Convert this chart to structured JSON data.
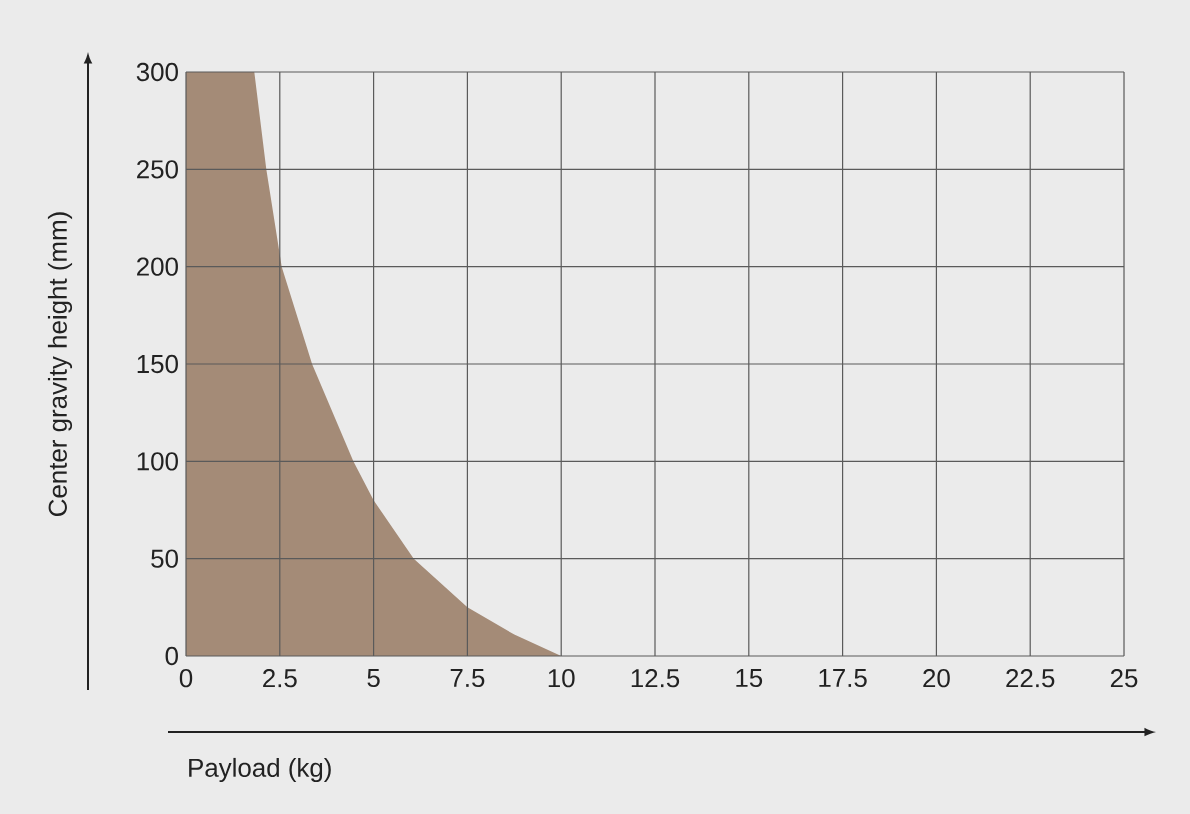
{
  "chart_data": {
    "type": "area",
    "xlabel": "Payload (kg)",
    "ylabel": "Center gravity height (mm)",
    "x": [
      0,
      1.82,
      2.14,
      2.55,
      3.36,
      4.46,
      5,
      6.07,
      7.5,
      8.75,
      10
    ],
    "values": [
      300,
      300,
      250,
      200,
      150,
      100,
      80,
      50,
      25,
      11,
      0
    ],
    "color": "#a48b77",
    "xlim": [
      0,
      25
    ],
    "ylim": [
      0,
      300
    ],
    "xticks": [
      0,
      2.5,
      5,
      7.5,
      10,
      12.5,
      15,
      17.5,
      20,
      22.5,
      25
    ],
    "yticks": [
      0,
      50,
      100,
      150,
      200,
      250,
      300
    ],
    "grid": true
  }
}
